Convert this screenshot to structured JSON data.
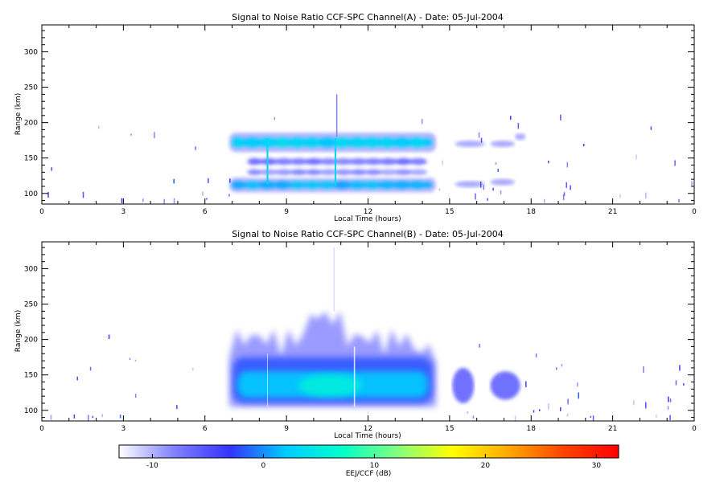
{
  "chart_data": [
    {
      "type": "heatmap",
      "title": "Signal to Noise Ratio CCF-SPC Channel(A) - Date: 05-Jul-2004",
      "xlabel": "Local Time (hours)",
      "ylabel": "Range (km)",
      "xlim": [
        0,
        24
      ],
      "ylim": [
        85,
        338
      ],
      "xticks": [
        "0",
        "3",
        "6",
        "9",
        "12",
        "15",
        "18",
        "21",
        "0"
      ],
      "yticks": [
        100,
        150,
        200,
        250,
        300
      ],
      "echo_layers": [
        {
          "t_start": 6.9,
          "t_end": 14.5,
          "range_center": 172,
          "range_width": 18,
          "snr_peak_db": 2
        },
        {
          "t_start": 6.9,
          "t_end": 14.5,
          "range_center": 112,
          "range_width": 14,
          "snr_peak_db": 1
        },
        {
          "t_start": 7.5,
          "t_end": 14.3,
          "range_center": 145,
          "range_width": 12,
          "snr_peak_db": -8
        },
        {
          "t_start": 7.5,
          "t_end": 14.3,
          "range_center": 130,
          "range_width": 10,
          "snr_peak_db": -9
        }
      ]
    },
    {
      "type": "heatmap",
      "title": "Signal to Noise Ratio CCF-SPC Channel(B) - Date: 05-Jul-2004",
      "xlabel": "Local Time (hours)",
      "ylabel": "Range (km)",
      "xlim": [
        0,
        24
      ],
      "ylim": [
        85,
        338
      ],
      "xticks": [
        "0",
        "3",
        "6",
        "9",
        "12",
        "15",
        "18",
        "21",
        "0"
      ],
      "yticks": [
        100,
        150,
        200,
        250,
        300
      ],
      "echo_region": {
        "t_start": 6.9,
        "t_end": 14.5,
        "range_bottom": 105,
        "range_top_max": 240,
        "snr_peak_db": 6
      },
      "echo_patches": [
        {
          "t_start": 15.1,
          "t_end": 15.9,
          "range_bottom": 110,
          "range_top": 160
        },
        {
          "t_start": 16.5,
          "t_end": 17.6,
          "range_bottom": 115,
          "range_top": 155
        }
      ]
    }
  ],
  "colorbar": {
    "label": "EEJ/CCF (dB)",
    "min": -13,
    "max": 32,
    "ticks": [
      "-10",
      "0",
      "10",
      "20",
      "30"
    ],
    "tick_values": [
      -10,
      0,
      10,
      20,
      30
    ],
    "colormap": [
      "#ffffff",
      "#8080ff",
      "#3333ff",
      "#00ccff",
      "#00ffcc",
      "#80ff80",
      "#ffff00",
      "#ffaa00",
      "#ff4400",
      "#ff0000"
    ]
  }
}
